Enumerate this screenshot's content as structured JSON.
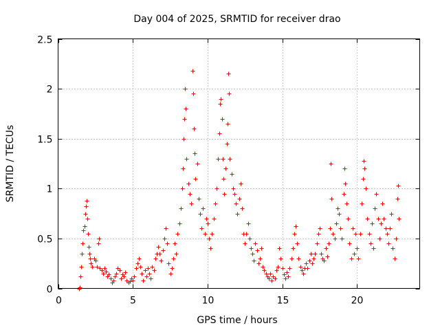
{
  "chart_data": {
    "type": "scatter",
    "title": "Day 004 of 2025, SRMTID for receiver drao",
    "xlabel": "GPS time / hours",
    "ylabel": "SRMTID / TECUs",
    "xlim": [
      0,
      24.2
    ],
    "ylim": [
      0,
      2.5
    ],
    "xticks": [
      0,
      5,
      10,
      15,
      20
    ],
    "yticks": [
      0,
      0.5,
      1,
      1.5,
      2,
      2.5
    ],
    "xtick_labels": [
      "0",
      "5",
      "10",
      "15",
      "20"
    ],
    "ytick_labels": [
      "0",
      "0.5",
      "1",
      "1.5",
      "2",
      "2.5"
    ],
    "grid": true,
    "marker": "plus",
    "color": "#ff0000",
    "points": [
      [
        1.4,
        0.0
      ],
      [
        1.45,
        0.01
      ],
      [
        1.5,
        0.12
      ],
      [
        1.55,
        0.22
      ],
      [
        1.6,
        0.35
      ],
      [
        1.65,
        0.45
      ],
      [
        1.7,
        0.58
      ],
      [
        1.75,
        0.62
      ],
      [
        1.8,
        0.75
      ],
      [
        1.85,
        0.82
      ],
      [
        1.9,
        0.88
      ],
      [
        1.95,
        0.7
      ],
      [
        2.0,
        0.55
      ],
      [
        2.05,
        0.42
      ],
      [
        2.1,
        0.35
      ],
      [
        2.15,
        0.3
      ],
      [
        2.2,
        0.25
      ],
      [
        2.3,
        0.22
      ],
      [
        2.4,
        0.3
      ],
      [
        2.5,
        0.28
      ],
      [
        2.6,
        0.22
      ],
      [
        2.7,
        0.45
      ],
      [
        2.75,
        0.5
      ],
      [
        2.8,
        0.2
      ],
      [
        2.9,
        0.18
      ],
      [
        3.0,
        0.15
      ],
      [
        3.1,
        0.2
      ],
      [
        3.2,
        0.17
      ],
      [
        3.3,
        0.12
      ],
      [
        3.4,
        0.14
      ],
      [
        3.5,
        0.1
      ],
      [
        3.6,
        0.06
      ],
      [
        3.7,
        0.08
      ],
      [
        3.8,
        0.12
      ],
      [
        3.9,
        0.15
      ],
      [
        4.0,
        0.2
      ],
      [
        4.1,
        0.18
      ],
      [
        4.2,
        0.1
      ],
      [
        4.3,
        0.14
      ],
      [
        4.4,
        0.12
      ],
      [
        4.5,
        0.16
      ],
      [
        4.6,
        0.08
      ],
      [
        4.7,
        0.06
      ],
      [
        4.8,
        0.07
      ],
      [
        4.9,
        0.1
      ],
      [
        5.0,
        0.08
      ],
      [
        5.1,
        0.12
      ],
      [
        5.2,
        0.2
      ],
      [
        5.3,
        0.25
      ],
      [
        5.4,
        0.3
      ],
      [
        5.5,
        0.22
      ],
      [
        5.6,
        0.15
      ],
      [
        5.7,
        0.08
      ],
      [
        5.8,
        0.18
      ],
      [
        5.9,
        0.12
      ],
      [
        6.0,
        0.2
      ],
      [
        6.1,
        0.15
      ],
      [
        6.2,
        0.1
      ],
      [
        6.3,
        0.22
      ],
      [
        6.4,
        0.18
      ],
      [
        6.5,
        0.3
      ],
      [
        6.6,
        0.35
      ],
      [
        6.7,
        0.42
      ],
      [
        6.8,
        0.35
      ],
      [
        6.9,
        0.28
      ],
      [
        7.0,
        0.38
      ],
      [
        7.1,
        0.5
      ],
      [
        7.2,
        0.6
      ],
      [
        7.3,
        0.45
      ],
      [
        7.4,
        0.25
      ],
      [
        7.5,
        0.15
      ],
      [
        7.6,
        0.2
      ],
      [
        7.7,
        0.3
      ],
      [
        7.8,
        0.45
      ],
      [
        7.9,
        0.35
      ],
      [
        8.0,
        0.55
      ],
      [
        8.1,
        0.65
      ],
      [
        8.2,
        0.8
      ],
      [
        8.3,
        1.0
      ],
      [
        8.35,
        1.2
      ],
      [
        8.4,
        1.5
      ],
      [
        8.45,
        1.7
      ],
      [
        8.5,
        2.0
      ],
      [
        8.55,
        1.8
      ],
      [
        8.6,
        1.3
      ],
      [
        8.7,
        1.05
      ],
      [
        8.8,
        0.95
      ],
      [
        8.9,
        0.85
      ],
      [
        9.0,
        2.18
      ],
      [
        9.05,
        1.95
      ],
      [
        9.1,
        1.6
      ],
      [
        9.15,
        1.35
      ],
      [
        9.2,
        1.1
      ],
      [
        9.3,
        1.25
      ],
      [
        9.4,
        0.9
      ],
      [
        9.5,
        0.75
      ],
      [
        9.6,
        0.6
      ],
      [
        9.7,
        0.8
      ],
      [
        9.8,
        0.55
      ],
      [
        9.9,
        0.7
      ],
      [
        10.0,
        0.65
      ],
      [
        10.1,
        0.5
      ],
      [
        10.2,
        0.4
      ],
      [
        10.3,
        0.55
      ],
      [
        10.4,
        0.7
      ],
      [
        10.5,
        0.85
      ],
      [
        10.6,
        1.0
      ],
      [
        10.7,
        1.3
      ],
      [
        10.8,
        1.55
      ],
      [
        10.85,
        1.85
      ],
      [
        10.9,
        1.9
      ],
      [
        10.95,
        1.7
      ],
      [
        11.0,
        1.3
      ],
      [
        11.05,
        1.1
      ],
      [
        11.1,
        0.95
      ],
      [
        11.2,
        1.2
      ],
      [
        11.3,
        1.45
      ],
      [
        11.35,
        1.65
      ],
      [
        11.4,
        2.15
      ],
      [
        11.45,
        1.95
      ],
      [
        11.5,
        1.3
      ],
      [
        11.6,
        1.15
      ],
      [
        11.7,
        1.0
      ],
      [
        11.8,
        0.95
      ],
      [
        11.9,
        0.85
      ],
      [
        12.0,
        0.75
      ],
      [
        12.1,
        0.9
      ],
      [
        12.2,
        1.05
      ],
      [
        12.3,
        0.8
      ],
      [
        12.4,
        0.55
      ],
      [
        12.5,
        0.45
      ],
      [
        12.6,
        0.55
      ],
      [
        12.7,
        0.65
      ],
      [
        12.8,
        0.5
      ],
      [
        12.9,
        0.4
      ],
      [
        13.0,
        0.35
      ],
      [
        13.1,
        0.28
      ],
      [
        13.2,
        0.45
      ],
      [
        13.3,
        0.38
      ],
      [
        13.4,
        0.25
      ],
      [
        13.5,
        0.3
      ],
      [
        13.6,
        0.4
      ],
      [
        13.7,
        0.22
      ],
      [
        13.8,
        0.18
      ],
      [
        13.9,
        0.15
      ],
      [
        14.0,
        0.12
      ],
      [
        14.1,
        0.1
      ],
      [
        14.2,
        0.15
      ],
      [
        14.3,
        0.08
      ],
      [
        14.4,
        0.12
      ],
      [
        14.5,
        0.1
      ],
      [
        14.6,
        0.18
      ],
      [
        14.7,
        0.22
      ],
      [
        14.8,
        0.4
      ],
      [
        14.9,
        0.3
      ],
      [
        15.0,
        0.2
      ],
      [
        15.1,
        0.14
      ],
      [
        15.2,
        0.1
      ],
      [
        15.3,
        0.16
      ],
      [
        15.4,
        0.12
      ],
      [
        15.5,
        0.2
      ],
      [
        15.6,
        0.3
      ],
      [
        15.7,
        0.4
      ],
      [
        15.8,
        0.55
      ],
      [
        15.9,
        0.62
      ],
      [
        16.0,
        0.45
      ],
      [
        16.1,
        0.3
      ],
      [
        16.2,
        0.22
      ],
      [
        16.3,
        0.18
      ],
      [
        16.4,
        0.15
      ],
      [
        16.5,
        0.2
      ],
      [
        16.6,
        0.25
      ],
      [
        16.7,
        0.2
      ],
      [
        16.8,
        0.28
      ],
      [
        16.9,
        0.35
      ],
      [
        17.0,
        0.25
      ],
      [
        17.1,
        0.3
      ],
      [
        17.2,
        0.35
      ],
      [
        17.3,
        0.45
      ],
      [
        17.4,
        0.55
      ],
      [
        17.5,
        0.6
      ],
      [
        17.6,
        0.35
      ],
      [
        17.7,
        0.3
      ],
      [
        17.8,
        0.28
      ],
      [
        17.9,
        0.4
      ],
      [
        18.0,
        0.32
      ],
      [
        18.1,
        0.45
      ],
      [
        18.2,
        0.6
      ],
      [
        18.25,
        1.25
      ],
      [
        18.3,
        0.9
      ],
      [
        18.4,
        0.55
      ],
      [
        18.5,
        0.5
      ],
      [
        18.6,
        0.65
      ],
      [
        18.7,
        0.8
      ],
      [
        18.8,
        0.75
      ],
      [
        18.9,
        0.6
      ],
      [
        19.0,
        0.5
      ],
      [
        19.1,
        0.95
      ],
      [
        19.15,
        1.2
      ],
      [
        19.2,
        1.05
      ],
      [
        19.3,
        0.85
      ],
      [
        19.4,
        0.7
      ],
      [
        19.5,
        0.45
      ],
      [
        19.6,
        0.3
      ],
      [
        19.7,
        0.6
      ],
      [
        19.8,
        0.35
      ],
      [
        19.9,
        0.55
      ],
      [
        20.0,
        0.4
      ],
      [
        20.1,
        0.3
      ],
      [
        20.2,
        0.55
      ],
      [
        20.3,
        0.85
      ],
      [
        20.4,
        1.1
      ],
      [
        20.45,
        1.28
      ],
      [
        20.5,
        1.2
      ],
      [
        20.6,
        1.0
      ],
      [
        20.7,
        0.7
      ],
      [
        20.8,
        0.55
      ],
      [
        20.9,
        0.45
      ],
      [
        21.0,
        0.65
      ],
      [
        21.1,
        0.4
      ],
      [
        21.2,
        0.8
      ],
      [
        21.3,
        0.95
      ],
      [
        21.4,
        0.7
      ],
      [
        21.5,
        0.5
      ],
      [
        21.6,
        0.65
      ],
      [
        21.7,
        0.85
      ],
      [
        21.8,
        0.7
      ],
      [
        21.9,
        0.6
      ],
      [
        22.0,
        0.55
      ],
      [
        22.1,
        0.45
      ],
      [
        22.2,
        0.6
      ],
      [
        22.3,
        0.75
      ],
      [
        22.4,
        0.4
      ],
      [
        22.5,
        0.3
      ],
      [
        22.6,
        0.5
      ],
      [
        22.7,
        0.9
      ],
      [
        22.75,
        1.03
      ],
      [
        22.8,
        0.7
      ]
    ]
  }
}
